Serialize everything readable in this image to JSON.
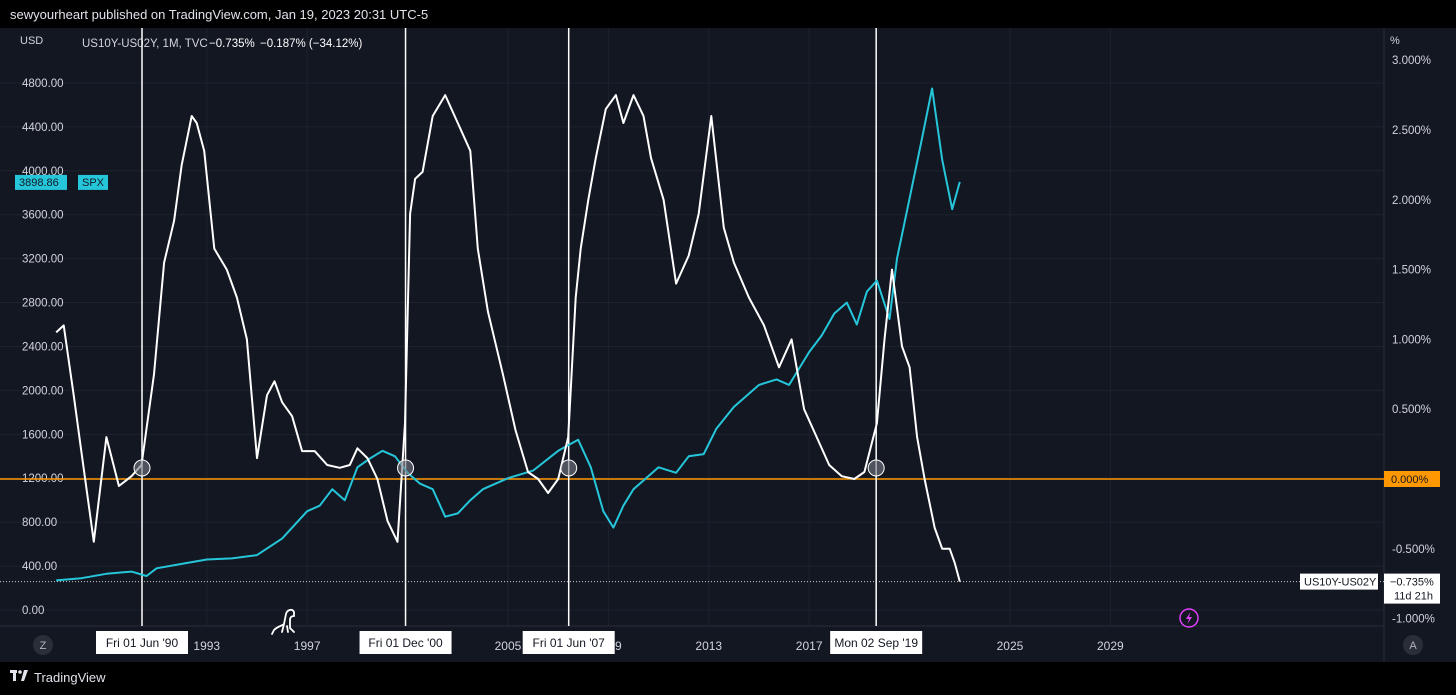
{
  "header": {
    "text": "sewyourheart published on TradingView.com, Jan 19, 2023 20:31 UTC-5"
  },
  "legend": {
    "symbol": "US10Y-US02Y, 1M, TVC",
    "value": "−0.735%",
    "change": "−0.187% (−34.12%)"
  },
  "footer": {
    "brand": "TradingView"
  },
  "colors": {
    "background": "#131722",
    "spread": "#ffffff",
    "spx": "#26c6da",
    "zero_line": "#ff9800"
  },
  "chart_data": {
    "type": "line",
    "left_axis_unit": "USD",
    "right_axis_unit": "%",
    "left_ticks": [
      "4800.00",
      "4400.00",
      "4000.00",
      "3600.00",
      "3200.00",
      "2800.00",
      "2400.00",
      "2000.00",
      "1600.00",
      "1200.00",
      "800.00",
      "400.00",
      "0.00"
    ],
    "right_ticks": [
      "3.000%",
      "2.500%",
      "2.000%",
      "1.500%",
      "1.000%",
      "0.500%",
      "0.000%",
      "-0.500%",
      "-1.000%"
    ],
    "x_ticks": [
      "1993",
      "1997",
      "2005",
      "2009",
      "2013",
      "2017",
      "2025",
      "2029"
    ],
    "left_ylim": [
      0,
      5000
    ],
    "right_ylim": [
      -1.0,
      3.0
    ],
    "x_range": [
      1986,
      2032
    ],
    "series": [
      {
        "name": "US10Y-US02Y",
        "axis": "right",
        "x": [
          1987.0,
          1987.3,
          1987.7,
          1988.0,
          1988.5,
          1989.0,
          1989.5,
          1990.0,
          1990.4,
          1990.9,
          1991.3,
          1991.7,
          1992.0,
          1992.4,
          1992.6,
          1992.9,
          1993.3,
          1993.8,
          1994.2,
          1994.6,
          1995.0,
          1995.4,
          1995.7,
          1996.0,
          1996.4,
          1996.8,
          1997.3,
          1997.8,
          1998.3,
          1998.7,
          1999.0,
          1999.4,
          1999.8,
          2000.2,
          2000.6,
          2000.9,
          2001.1,
          2001.3,
          2001.6,
          2002.0,
          2002.5,
          2003.0,
          2003.5,
          2003.8,
          2004.2,
          2004.8,
          2005.3,
          2005.8,
          2006.2,
          2006.6,
          2007.0,
          2007.4,
          2007.7,
          2007.9,
          2008.2,
          2008.5,
          2008.9,
          2009.3,
          2009.6,
          2010.0,
          2010.4,
          2010.7,
          2011.2,
          2011.7,
          2012.2,
          2012.6,
          2013.1,
          2013.6,
          2014.0,
          2014.6,
          2015.2,
          2015.8,
          2016.3,
          2016.8,
          2017.3,
          2017.8,
          2018.3,
          2018.8,
          2019.2,
          2019.7,
          2020.0,
          2020.3,
          2020.7,
          2021.0,
          2021.3,
          2021.6,
          2022.0,
          2022.3,
          2022.6,
          2022.8,
          2023.0
        ],
        "values": [
          1.05,
          1.1,
          0.6,
          0.2,
          -0.45,
          0.3,
          -0.05,
          0.02,
          0.1,
          0.75,
          1.55,
          1.85,
          2.25,
          2.6,
          2.55,
          2.35,
          1.65,
          1.5,
          1.3,
          1.0,
          0.15,
          0.6,
          0.7,
          0.55,
          0.45,
          0.2,
          0.2,
          0.1,
          0.08,
          0.1,
          0.22,
          0.15,
          0.0,
          -0.3,
          -0.45,
          0.4,
          1.9,
          2.15,
          2.2,
          2.6,
          2.75,
          2.55,
          2.35,
          1.65,
          1.2,
          0.75,
          0.35,
          0.05,
          0.0,
          -0.1,
          0.0,
          0.3,
          1.3,
          1.65,
          2.0,
          2.3,
          2.65,
          2.75,
          2.55,
          2.75,
          2.6,
          2.3,
          2.0,
          1.4,
          1.6,
          1.9,
          2.6,
          1.8,
          1.55,
          1.3,
          1.1,
          0.8,
          1.0,
          0.5,
          0.3,
          0.1,
          0.02,
          0.0,
          0.05,
          0.4,
          1.0,
          1.5,
          0.95,
          0.8,
          0.3,
          0.0,
          -0.35,
          -0.5,
          -0.5,
          -0.6,
          -0.735
        ]
      },
      {
        "name": "SPX",
        "axis": "left",
        "x": [
          1987.0,
          1988.0,
          1989.0,
          1990.0,
          1990.6,
          1991.0,
          1992.0,
          1993.0,
          1994.0,
          1995.0,
          1996.0,
          1997.0,
          1997.5,
          1998.0,
          1998.5,
          1999.0,
          1999.5,
          2000.0,
          2000.5,
          2001.0,
          2001.5,
          2002.0,
          2002.5,
          2003.0,
          2003.5,
          2004.0,
          2005.0,
          2006.0,
          2007.0,
          2007.8,
          2008.3,
          2008.8,
          2009.2,
          2009.6,
          2010.0,
          2010.5,
          2011.0,
          2011.7,
          2012.2,
          2012.8,
          2013.3,
          2014.0,
          2015.0,
          2015.7,
          2016.2,
          2017.0,
          2017.5,
          2018.0,
          2018.5,
          2018.9,
          2019.3,
          2019.7,
          2020.2,
          2020.5,
          2021.0,
          2021.5,
          2021.9,
          2022.3,
          2022.7,
          2023.0
        ],
        "values": [
          270,
          290,
          330,
          350,
          310,
          380,
          420,
          460,
          470,
          500,
          650,
          900,
          950,
          1100,
          1000,
          1300,
          1380,
          1450,
          1400,
          1250,
          1150,
          1100,
          850,
          880,
          1000,
          1100,
          1200,
          1270,
          1450,
          1550,
          1300,
          900,
          750,
          950,
          1100,
          1200,
          1300,
          1250,
          1400,
          1420,
          1650,
          1850,
          2050,
          2100,
          2050,
          2350,
          2500,
          2700,
          2800,
          2600,
          2900,
          3000,
          2650,
          3200,
          3750,
          4300,
          4750,
          4100,
          3650,
          3898.86
        ]
      }
    ],
    "price_labels": {
      "spx": "3898.86",
      "spx_name": "SPX",
      "zero": "0.000%",
      "spread_name": "US10Y-US02Y",
      "spread": "−0.735%",
      "countdown": "11d 21h"
    },
    "markers": [
      {
        "date_label": "Fri 01 Jun '90",
        "x": 1990.42
      },
      {
        "date_label": "Fri 01 Dec '00",
        "x": 2000.92
      },
      {
        "date_label": "Fri 01 Jun '07",
        "x": 2007.42
      },
      {
        "date_label": "Mon 02 Sep '19",
        "x": 2019.67
      }
    ],
    "zero_line": 0.0,
    "corner_labels": {
      "left": "Z",
      "right": "A"
    }
  }
}
